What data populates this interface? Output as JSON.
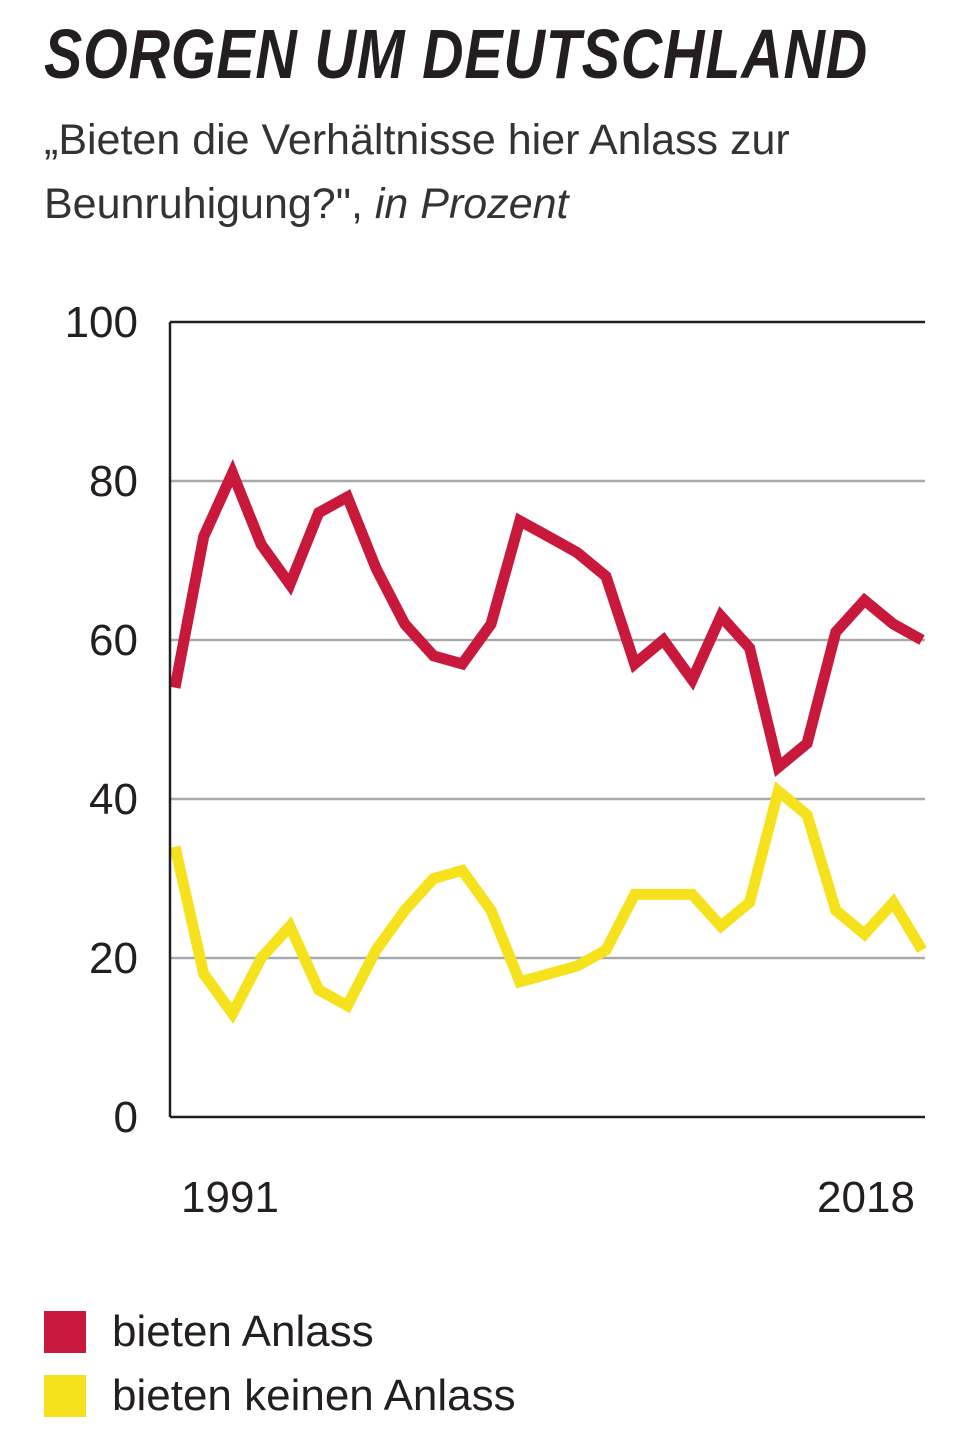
{
  "title": "SORGEN UM DEUTSCHLAND",
  "subtitle": "„Bieten die Verhältnisse hier Anlass zur Beunruhigung?\",",
  "unit": "in Prozent",
  "chart_data": {
    "type": "line",
    "x_start_label": "1991",
    "x_end_label": "2018",
    "yticks": [
      "0",
      "20",
      "40",
      "60",
      "80",
      "100"
    ],
    "ylim": [
      0,
      100
    ],
    "grid": true,
    "legend_position": "bottom",
    "series": [
      {
        "name": "bieten Anlass",
        "color": "#c8193c",
        "values": [
          54,
          73,
          81,
          72,
          67,
          76,
          78,
          69,
          62,
          58,
          57,
          62,
          75,
          73,
          71,
          68,
          57,
          60,
          55,
          63,
          59,
          44,
          47,
          61,
          65,
          62,
          60
        ]
      },
      {
        "name": "bieten keinen Anlass",
        "color": "#f5e11c",
        "values": [
          34,
          18,
          13,
          20,
          24,
          16,
          14,
          21,
          26,
          30,
          31,
          26,
          17,
          18,
          19,
          21,
          28,
          28,
          28,
          24,
          27,
          41,
          38,
          26,
          23,
          27,
          21
        ]
      }
    ]
  }
}
